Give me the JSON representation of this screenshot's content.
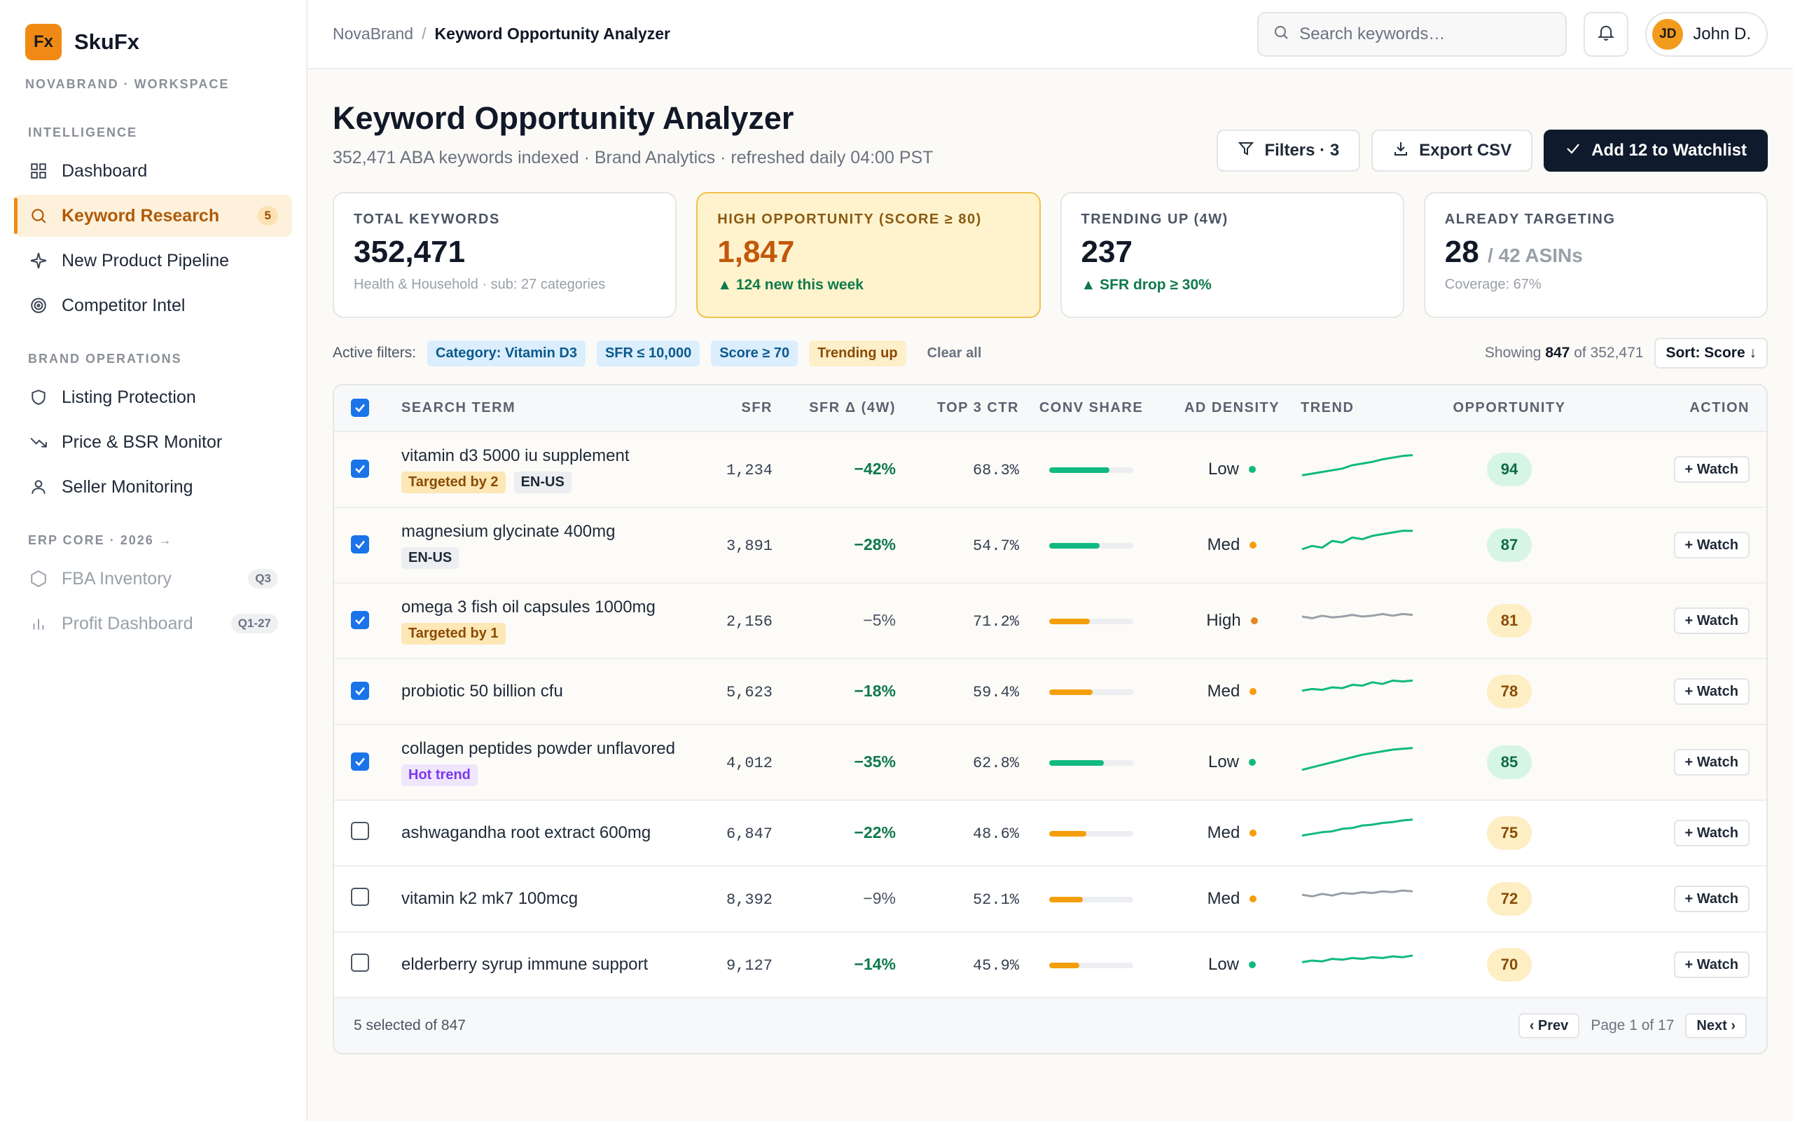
{
  "app": {
    "logo_mark": "Fx",
    "name": "SkuFx",
    "workspace": "NOVABRAND · WORKSPACE"
  },
  "sidebar": {
    "sections": [
      {
        "title": "INTELLIGENCE",
        "items": [
          {
            "label": "Dashboard",
            "icon": "grid-icon"
          },
          {
            "label": "Keyword Research",
            "icon": "search-icon",
            "badge": "5",
            "active": true
          },
          {
            "label": "New Product Pipeline",
            "icon": "sparkle-icon"
          },
          {
            "label": "Competitor Intel",
            "icon": "target-icon"
          }
        ]
      },
      {
        "title": "BRAND OPERATIONS",
        "items": [
          {
            "label": "Listing Protection",
            "icon": "shield-icon"
          },
          {
            "label": "Price & BSR Monitor",
            "icon": "trend-down-icon"
          },
          {
            "label": "Seller Monitoring",
            "icon": "user-icon"
          }
        ]
      },
      {
        "title": "ERP CORE · 2026 →",
        "items": [
          {
            "label": "FBA Inventory",
            "icon": "hexagon-icon",
            "badge": "Q3",
            "dim": true
          },
          {
            "label": "Profit Dashboard",
            "icon": "bar-chart-icon",
            "badge": "Q1-27",
            "dim": true
          }
        ]
      }
    ]
  },
  "topbar": {
    "breadcrumb_root": "NovaBrand",
    "breadcrumb_sep": "/",
    "breadcrumb_current": "Keyword Opportunity Analyzer",
    "search_placeholder": "Search keywords…",
    "user_initials": "JD",
    "user_name": "John D."
  },
  "header": {
    "title": "Keyword Opportunity Analyzer",
    "subtitle": "352,471 ABA keywords indexed · Brand Analytics · refreshed daily 04:00 PST",
    "filters_label": "Filters · 3",
    "export_label": "Export CSV",
    "watchlist_label": "Add 12 to Watchlist"
  },
  "cards": {
    "total": {
      "label": "TOTAL KEYWORDS",
      "value": "352,471",
      "note": "Health & Household · sub: 27 categories"
    },
    "high": {
      "label": "HIGH OPPORTUNITY (SCORE ≥ 80)",
      "value": "1,847",
      "note": "▲ 124 new this week"
    },
    "trending": {
      "label": "TRENDING UP (4W)",
      "value": "237",
      "note": "▲ SFR drop ≥ 30%"
    },
    "targeting": {
      "label": "ALREADY TARGETING",
      "value": "28",
      "of": "/ 42 ASINs",
      "note": "Coverage: 67%"
    }
  },
  "filters": {
    "label": "Active filters:",
    "chips": [
      "Category: Vitamin D3",
      "SFR ≤ 10,000",
      "Score ≥ 70",
      "Trending up"
    ],
    "clear": "Clear all",
    "showing_prefix": "Showing",
    "showing_count": "847",
    "showing_suffix": "of 352,471",
    "sort": "Sort: Score ↓"
  },
  "table": {
    "columns": [
      "SEARCH TERM",
      "SFR",
      "SFR Δ (4W)",
      "TOP 3 CTR",
      "CONV SHARE",
      "AD DENSITY",
      "TREND",
      "OPPORTUNITY",
      "ACTION"
    ],
    "watch_label": "+ Watch",
    "rows": [
      {
        "term": "vitamin d3 5000 iu supplement",
        "tags": [
          {
            "text": "Targeted by 2",
            "kind": "targeted"
          },
          {
            "text": "EN-US",
            "kind": "locale"
          }
        ],
        "checked": true,
        "sfr": "1,234",
        "delta": "−42%",
        "delta_color": "green",
        "ctr": "68.3%",
        "conv": 0.72,
        "conv_color": "#10b981",
        "density": "Low",
        "density_color": "#10b981",
        "trend": [
          18,
          20,
          22,
          24,
          26,
          30,
          32,
          34,
          37,
          39,
          41,
          42
        ],
        "trend_color": "#10b981",
        "score": "94",
        "score_kind": "green"
      },
      {
        "term": "magnesium glycinate 400mg",
        "tags": [
          {
            "text": "EN-US",
            "kind": "locale"
          }
        ],
        "checked": true,
        "sfr": "3,891",
        "delta": "−28%",
        "delta_color": "green",
        "ctr": "54.7%",
        "conv": 0.6,
        "conv_color": "#10b981",
        "density": "Med",
        "density_color": "#f59e0b",
        "trend": [
          20,
          24,
          22,
          30,
          28,
          34,
          32,
          36,
          38,
          40,
          42,
          42
        ],
        "trend_color": "#10b981",
        "score": "87",
        "score_kind": "green"
      },
      {
        "term": "omega 3 fish oil capsules 1000mg",
        "tags": [
          {
            "text": "Targeted by 1",
            "kind": "targeted"
          }
        ],
        "checked": true,
        "sfr": "2,156",
        "delta": "−5%",
        "delta_color": "gray",
        "ctr": "71.2%",
        "conv": 0.48,
        "conv_color": "#f59e0b",
        "density": "High",
        "density_color": "#e4891b",
        "trend": [
          30,
          28,
          31,
          29,
          30,
          32,
          30,
          31,
          33,
          31,
          33,
          32
        ],
        "trend_color": "#9aa0a8",
        "score": "81",
        "score_kind": "amber"
      },
      {
        "term": "probiotic 50 billion cfu",
        "tags": [],
        "checked": true,
        "sfr": "5,623",
        "delta": "−18%",
        "delta_color": "green",
        "ctr": "59.4%",
        "conv": 0.52,
        "conv_color": "#f59e0b",
        "density": "Med",
        "density_color": "#f59e0b",
        "trend": [
          26,
          28,
          27,
          30,
          29,
          33,
          32,
          36,
          34,
          38,
          37,
          38
        ],
        "trend_color": "#10b981",
        "score": "78",
        "score_kind": "amber"
      },
      {
        "term": "collagen peptides powder unflavored",
        "tags": [
          {
            "text": "Hot trend",
            "kind": "hot"
          }
        ],
        "checked": true,
        "sfr": "4,012",
        "delta": "−35%",
        "delta_color": "green",
        "ctr": "62.8%",
        "conv": 0.65,
        "conv_color": "#10b981",
        "density": "Low",
        "density_color": "#10b981",
        "trend": [
          16,
          19,
          22,
          25,
          28,
          31,
          34,
          36,
          38,
          40,
          41,
          42
        ],
        "trend_color": "#10b981",
        "score": "85",
        "score_kind": "green"
      },
      {
        "term": "ashwagandha root extract 600mg",
        "tags": [],
        "checked": false,
        "sfr": "6,847",
        "delta": "−22%",
        "delta_color": "green",
        "ctr": "48.6%",
        "conv": 0.44,
        "conv_color": "#f59e0b",
        "density": "Med",
        "density_color": "#f59e0b",
        "trend": [
          22,
          24,
          26,
          27,
          30,
          31,
          34,
          35,
          37,
          38,
          40,
          41
        ],
        "trend_color": "#10b981",
        "score": "75",
        "score_kind": "amber"
      },
      {
        "term": "vitamin k2 mk7 100mcg",
        "tags": [],
        "checked": false,
        "sfr": "8,392",
        "delta": "−9%",
        "delta_color": "gray",
        "ctr": "52.1%",
        "conv": 0.4,
        "conv_color": "#f59e0b",
        "density": "Med",
        "density_color": "#f59e0b",
        "trend": [
          30,
          28,
          31,
          29,
          32,
          31,
          33,
          32,
          34,
          33,
          35,
          34
        ],
        "trend_color": "#9aa0a8",
        "score": "72",
        "score_kind": "amber"
      },
      {
        "term": "elderberry syrup immune support",
        "tags": [],
        "checked": false,
        "sfr": "9,127",
        "delta": "−14%",
        "delta_color": "green",
        "ctr": "45.9%",
        "conv": 0.36,
        "conv_color": "#f59e0b",
        "density": "Low",
        "density_color": "#10b981",
        "trend": [
          28,
          30,
          29,
          32,
          31,
          33,
          32,
          34,
          33,
          35,
          34,
          36
        ],
        "trend_color": "#10b981",
        "score": "70",
        "score_kind": "amber"
      }
    ]
  },
  "footer": {
    "selected": "5 selected of 847",
    "prev": "‹ Prev",
    "page": "Page 1 of 17",
    "next": "Next ›"
  }
}
